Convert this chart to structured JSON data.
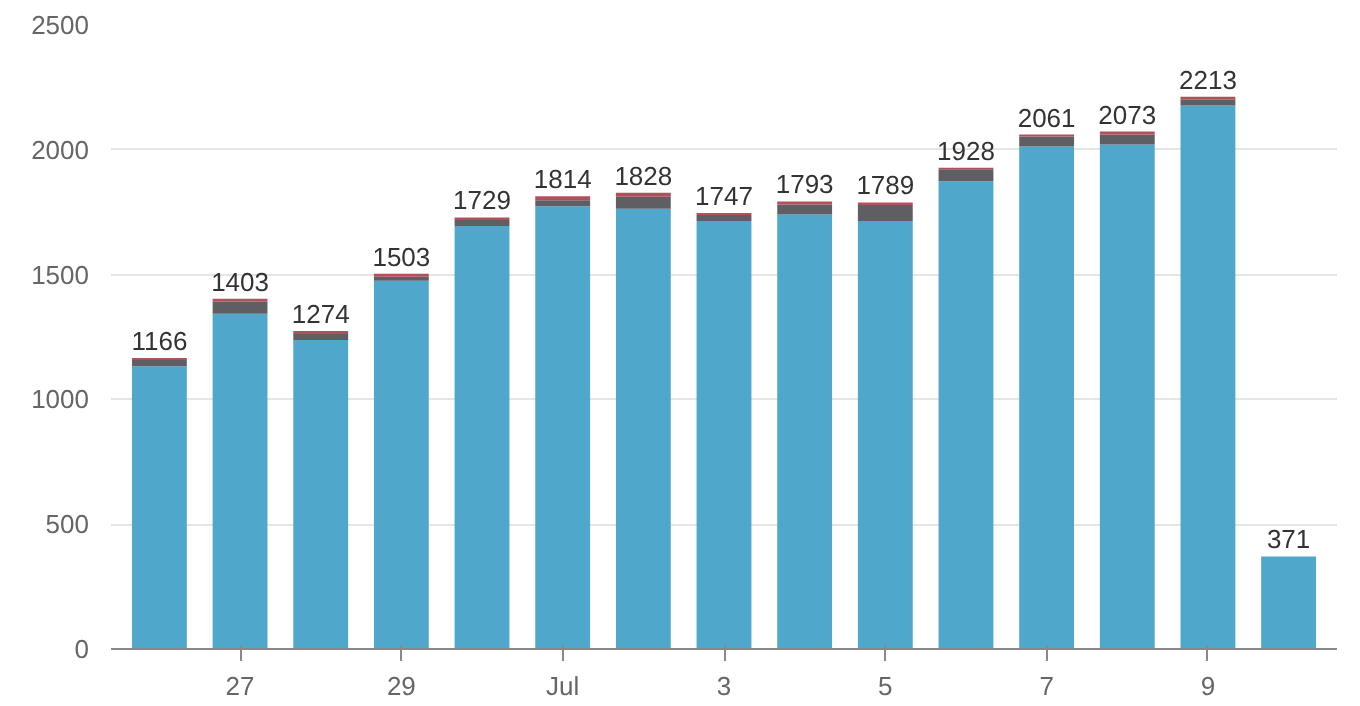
{
  "chart_data": {
    "type": "bar",
    "stacked": true,
    "categories": [
      null,
      "27",
      null,
      "29",
      null,
      "Jul",
      null,
      "3",
      null,
      "5",
      null,
      "7",
      null,
      "9",
      null
    ],
    "series": [
      {
        "color": "#4fa8cb",
        "values": [
          1133,
          1343,
          1238,
          1475,
          1695,
          1774,
          1764,
          1715,
          1741,
          1715,
          1874,
          2013,
          2021,
          2177,
          371
        ]
      },
      {
        "color": "#5f5f63",
        "values": [
          25,
          48,
          24,
          16,
          24,
          24,
          48,
          24,
          40,
          64,
          48,
          40,
          40,
          24,
          0
        ]
      },
      {
        "color": "#b0505d",
        "values": [
          8,
          12,
          12,
          12,
          10,
          16,
          16,
          8,
          12,
          10,
          6,
          8,
          12,
          12,
          0
        ]
      }
    ],
    "totals": [
      "1166",
      "1403",
      "1274",
      "1503",
      "1729",
      "1814",
      "1828",
      "1747",
      "1793",
      "1789",
      "1928",
      "2061",
      "2073",
      "2213",
      "371"
    ],
    "ylim": [
      0,
      2500
    ],
    "yticks": [
      0,
      500,
      1000,
      1500,
      2000,
      2500
    ],
    "grid": "y"
  }
}
